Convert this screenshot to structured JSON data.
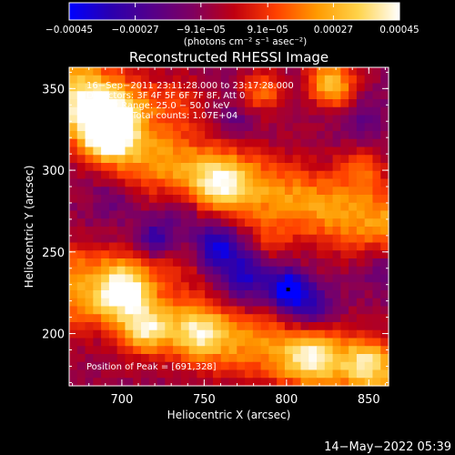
{
  "chart_data": {
    "type": "heatmap",
    "title": "Reconstructed RHESSI Image",
    "xlabel": "Heliocentric X (arcsec)",
    "ylabel": "Heliocentric Y (arcsec)",
    "xlim": [
      668,
      862
    ],
    "ylim": [
      168,
      363
    ],
    "x_ticks": [
      700,
      750,
      800,
      850
    ],
    "y_ticks": [
      200,
      250,
      300,
      350
    ],
    "colorbar": {
      "min": -0.00045,
      "max": 0.00045,
      "tick_values": [
        -0.00045,
        -0.00027,
        -9.1e-05,
        9.1e-05,
        0.00027,
        0.00045
      ],
      "tick_labels": [
        "−0.00045",
        "−0.00027",
        "−9.1e−05",
        "9.1e−05",
        "0.00027",
        "0.00045"
      ],
      "units_label": "(photons cm⁻² s⁻¹ asec⁻²)",
      "colormap": [
        "#0000ff",
        "#2a00b0",
        "#55008a",
        "#800060",
        "#c00010",
        "#ff4000",
        "#ff9a00",
        "#ffd34a",
        "#ffffff"
      ]
    },
    "annotations": [
      "16−Sep−2011 23:11:28.000 to 23:17:28.000",
      "Detectors: 3F 4F 5F 6F 7F 8F, Att 0",
      "Energy Range: 25.0 − 50.0 keV",
      "Total counts: 1.07E+04"
    ],
    "peak_label": "Position of Peak = [691,328]",
    "peak": [
      691,
      328
    ],
    "marker_point": [
      801,
      227
    ],
    "grid_resolution": 40,
    "image_features": {
      "bright_bands": [
        {
          "pts": [
            [
              668,
              358
            ],
            [
              688,
              330
            ],
            [
              710,
              312
            ],
            [
              740,
              300
            ],
            [
              768,
              292
            ],
            [
              800,
              282
            ],
            [
              830,
              275
            ],
            [
              862,
              268
            ]
          ],
          "width": 16,
          "amp": 0.7
        },
        {
          "pts": [
            [
              668,
              340
            ],
            [
              700,
              345
            ],
            [
              735,
              342
            ]
          ],
          "width": 12,
          "amp": 0.35
        },
        {
          "pts": [
            [
              668,
              225
            ],
            [
              700,
              210
            ],
            [
              740,
              204
            ],
            [
              770,
              195
            ],
            [
              800,
              188
            ],
            [
              830,
              182
            ],
            [
              862,
              176
            ]
          ],
          "width": 15,
          "amp": 0.65
        },
        {
          "pts": [
            [
              668,
              245
            ],
            [
              700,
              240
            ],
            [
              740,
              242
            ]
          ],
          "width": 10,
          "amp": 0.25
        }
      ],
      "spots": [
        {
          "center": [
            691,
            328
          ],
          "sigma": 12,
          "amp": 1.0
        },
        {
          "center": [
            690,
            318
          ],
          "sigma": 8,
          "amp": 0.45
        },
        {
          "center": [
            702,
            228
          ],
          "sigma": 12,
          "amp": 0.7
        },
        {
          "center": [
            785,
            348
          ],
          "sigma": 9,
          "amp": 0.55
        },
        {
          "center": [
            825,
            355
          ],
          "sigma": 10,
          "amp": 0.5
        },
        {
          "center": [
            830,
            350
          ],
          "sigma": 9,
          "amp": 0.45
        },
        {
          "center": [
            845,
            302
          ],
          "sigma": 9,
          "amp": 0.45
        },
        {
          "center": [
            760,
            292
          ],
          "sigma": 11,
          "amp": 0.55
        },
        {
          "center": [
            790,
            256
          ],
          "sigma": 8,
          "amp": 0.25
        },
        {
          "center": [
            748,
            200
          ],
          "sigma": 11,
          "amp": 0.5
        },
        {
          "center": [
            815,
            186
          ],
          "sigma": 11,
          "amp": 0.55
        },
        {
          "center": [
            848,
            182
          ],
          "sigma": 9,
          "amp": 0.45
        },
        {
          "center": [
            715,
            202
          ],
          "sigma": 9,
          "amp": 0.5
        },
        {
          "center": [
            700,
            226
          ],
          "sigma": 8,
          "amp": 0.25
        },
        {
          "center": [
            801,
            227
          ],
          "sigma": 8,
          "amp": -0.95
        },
        {
          "center": [
            757,
            253
          ],
          "sigma": 10,
          "amp": -0.75
        },
        {
          "center": [
            720,
            258
          ],
          "sigma": 8,
          "amp": -0.55
        },
        {
          "center": [
            815,
            215
          ],
          "sigma": 10,
          "amp": -0.55
        },
        {
          "center": [
            775,
            235
          ],
          "sigma": 11,
          "amp": -0.6
        },
        {
          "center": [
            735,
            275
          ],
          "sigma": 9,
          "amp": -0.3
        },
        {
          "center": [
            695,
            283
          ],
          "sigma": 9,
          "amp": -0.25
        },
        {
          "center": [
            690,
            200
          ],
          "sigma": 9,
          "amp": -0.2
        },
        {
          "center": [
            845,
            330
          ],
          "sigma": 10,
          "amp": -0.25
        },
        {
          "center": [
            770,
            330
          ],
          "sigma": 9,
          "amp": -0.25
        },
        {
          "center": [
            860,
            240
          ],
          "sigma": 10,
          "amp": -0.3
        }
      ],
      "background": -0.18,
      "seed": 17
    },
    "grid": false,
    "legend": "none"
  },
  "timestamp": "14−May−2022 05:39"
}
